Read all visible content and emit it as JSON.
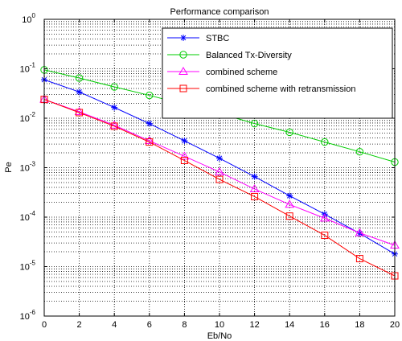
{
  "chart_data": {
    "type": "line",
    "title": "Performance comparison",
    "xlabel": "Eb/No",
    "ylabel": "Pe",
    "xlim": [
      0,
      20
    ],
    "ylim": [
      1e-06,
      1
    ],
    "yscale": "log",
    "grid": true,
    "legend_position": "top-right",
    "x_ticks": [
      0,
      2,
      4,
      6,
      8,
      10,
      12,
      14,
      16,
      18,
      20
    ],
    "x_tick_labels": [
      "0",
      "2",
      "4",
      "6",
      "8",
      "10",
      "12",
      "14",
      "16",
      "18",
      "20"
    ],
    "y_ticks": [
      1e-06,
      1e-05,
      0.0001,
      0.001,
      0.01,
      0.1,
      1
    ],
    "y_tick_labels": [
      {
        "base": "10",
        "exp": "-6"
      },
      {
        "base": "10",
        "exp": "-5"
      },
      {
        "base": "10",
        "exp": "-4"
      },
      {
        "base": "10",
        "exp": "-3"
      },
      {
        "base": "10",
        "exp": "-2"
      },
      {
        "base": "10",
        "exp": "-1"
      },
      {
        "base": "10",
        "exp": "0"
      }
    ],
    "series": [
      {
        "name": "STBC",
        "color": "#0000ff",
        "marker": "asterisk",
        "x": [
          0,
          2,
          4,
          6,
          8,
          10,
          12,
          14,
          16,
          18,
          20
        ],
        "values": [
          0.06,
          0.034,
          0.0165,
          0.0078,
          0.0035,
          0.00155,
          0.00066,
          0.00027,
          0.000115,
          4.7e-05,
          1.8e-05
        ]
      },
      {
        "name": "Balanced Tx-Diversity",
        "color": "#00cc00",
        "marker": "circle",
        "x": [
          0,
          2,
          4,
          6,
          8,
          10,
          12,
          14,
          16,
          18,
          20
        ],
        "values": [
          0.095,
          0.065,
          0.043,
          0.029,
          0.019,
          0.0125,
          0.0078,
          0.0052,
          0.0033,
          0.0021,
          0.0013
        ]
      },
      {
        "name": "combined scheme",
        "color": "#ff00ff",
        "marker": "triangle",
        "x": [
          0,
          2,
          4,
          6,
          8,
          10,
          12,
          14,
          16,
          18,
          20
        ],
        "values": [
          0.024,
          0.0135,
          0.0072,
          0.0035,
          0.0017,
          0.00082,
          0.00037,
          0.00018,
          9.5e-05,
          4.8e-05,
          2.7e-05
        ]
      },
      {
        "name": "combined scheme with retransmission",
        "color": "#ff0000",
        "marker": "square",
        "x": [
          0,
          2,
          4,
          6,
          8,
          10,
          12,
          14,
          16,
          18,
          20
        ],
        "values": [
          0.024,
          0.013,
          0.0069,
          0.0033,
          0.0014,
          0.00058,
          0.00026,
          0.000105,
          4.3e-05,
          1.45e-05,
          6.5e-06
        ]
      }
    ]
  }
}
